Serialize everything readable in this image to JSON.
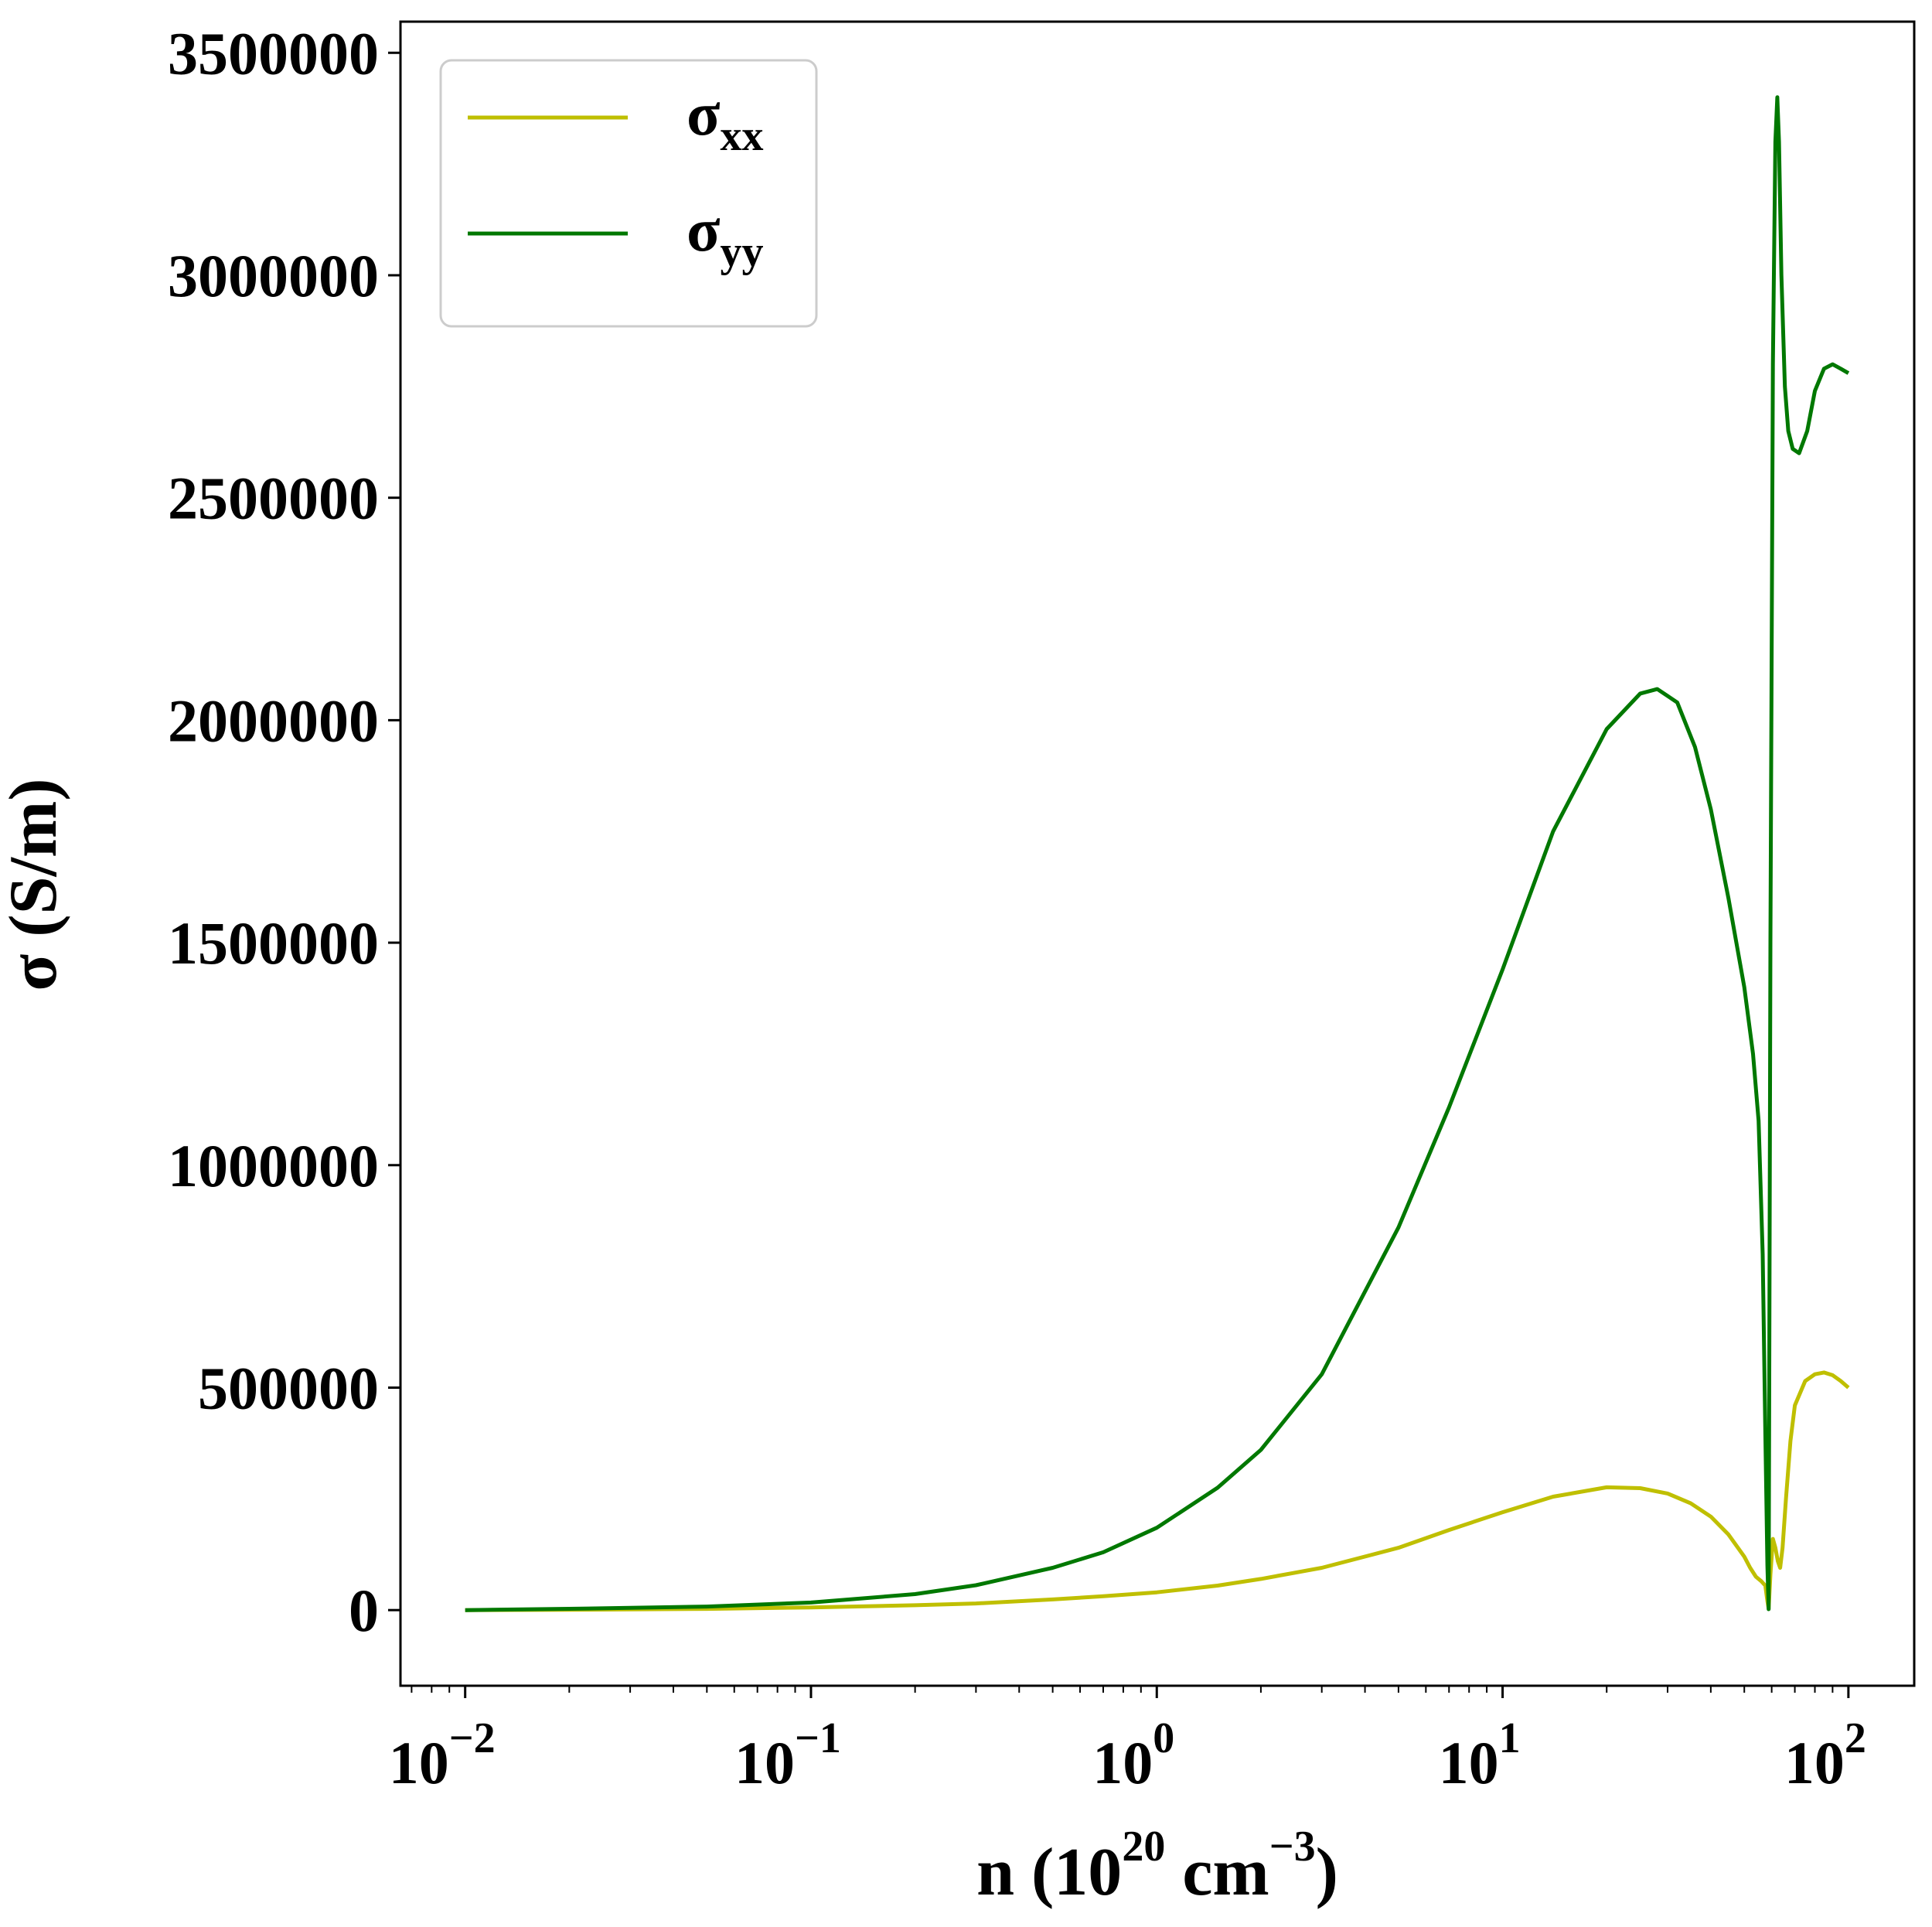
{
  "chart_data": {
    "type": "line",
    "title": "",
    "xlabel": {
      "base": "n (10",
      "exp1": "20",
      "mid": " cm",
      "exp2": "−3",
      "end": ")"
    },
    "ylabel": "σ (S/m)",
    "xscale": "log",
    "xlim": [
      0.0065,
      155
    ],
    "ylim": [
      -170000,
      3570000
    ],
    "x_ticks": [
      {
        "value": 0.01,
        "base": "10",
        "exp": "−2"
      },
      {
        "value": 0.1,
        "base": "10",
        "exp": "−1"
      },
      {
        "value": 1,
        "base": "10",
        "exp": "0"
      },
      {
        "value": 10,
        "base": "10",
        "exp": "1"
      },
      {
        "value": 100,
        "base": "10",
        "exp": "2"
      }
    ],
    "y_ticks": [
      {
        "value": 0,
        "label": "0"
      },
      {
        "value": 500000,
        "label": "500000"
      },
      {
        "value": 1000000,
        "label": "1000000"
      },
      {
        "value": 1500000,
        "label": "1500000"
      },
      {
        "value": 2000000,
        "label": "2000000"
      },
      {
        "value": 2500000,
        "label": "2500000"
      },
      {
        "value": 3000000,
        "label": "3000000"
      },
      {
        "value": 3500000,
        "label": "3500000"
      }
    ],
    "grid": false,
    "legend": {
      "placement": "upper-left"
    },
    "series": [
      {
        "name": "σxx",
        "name_main": "σ",
        "name_sub": "xx",
        "color": "#bfbf00",
        "points": [
          [
            0.01,
            0
          ],
          [
            0.02,
            800
          ],
          [
            0.03,
            1500
          ],
          [
            0.05,
            2800
          ],
          [
            0.1,
            6000
          ],
          [
            0.2,
            11000
          ],
          [
            0.3,
            15000
          ],
          [
            0.5,
            24000
          ],
          [
            0.7,
            31000
          ],
          [
            1.0,
            40000
          ],
          [
            1.5,
            55000
          ],
          [
            2.0,
            70000
          ],
          [
            3.0,
            95000
          ],
          [
            5.0,
            140000
          ],
          [
            7.0,
            180000
          ],
          [
            10.0,
            220000
          ],
          [
            14.0,
            255000
          ],
          [
            20.0,
            276000
          ],
          [
            25.0,
            274000
          ],
          [
            30.0,
            262000
          ],
          [
            35.0,
            240000
          ],
          [
            40.0,
            210000
          ],
          [
            45.0,
            170000
          ],
          [
            50.0,
            120000
          ],
          [
            52.0,
            95000
          ],
          [
            54.0,
            75000
          ],
          [
            56.0,
            65000
          ],
          [
            57.5,
            55000
          ],
          [
            58.3,
            20000
          ],
          [
            58.8,
            3000
          ],
          [
            59.5,
            80000
          ],
          [
            60.5,
            160000
          ],
          [
            61.5,
            140000
          ],
          [
            62.5,
            110000
          ],
          [
            63.5,
            95000
          ],
          [
            64.5,
            140000
          ],
          [
            66.0,
            250000
          ],
          [
            68.0,
            380000
          ],
          [
            70.0,
            460000
          ],
          [
            75.0,
            515000
          ],
          [
            80.0,
            530000
          ],
          [
            85.0,
            534000
          ],
          [
            90.0,
            528000
          ],
          [
            95.0,
            515000
          ],
          [
            100.0,
            500000
          ]
        ]
      },
      {
        "name": "σyy",
        "name_main": "σ",
        "name_sub": "yy",
        "color": "#007800",
        "points": [
          [
            0.01,
            0
          ],
          [
            0.02,
            3000
          ],
          [
            0.03,
            5000
          ],
          [
            0.05,
            8000
          ],
          [
            0.1,
            17000
          ],
          [
            0.2,
            36000
          ],
          [
            0.3,
            56000
          ],
          [
            0.5,
            95000
          ],
          [
            0.7,
            130000
          ],
          [
            1.0,
            185000
          ],
          [
            1.5,
            275000
          ],
          [
            2.0,
            360000
          ],
          [
            3.0,
            530000
          ],
          [
            5.0,
            860000
          ],
          [
            7.0,
            1130000
          ],
          [
            10.0,
            1440000
          ],
          [
            14.0,
            1750000
          ],
          [
            20.0,
            1980000
          ],
          [
            25.0,
            2060000
          ],
          [
            28.0,
            2070000
          ],
          [
            32.0,
            2040000
          ],
          [
            36.0,
            1940000
          ],
          [
            40.0,
            1800000
          ],
          [
            45.0,
            1600000
          ],
          [
            50.0,
            1400000
          ],
          [
            53.0,
            1250000
          ],
          [
            55.0,
            1100000
          ],
          [
            56.5,
            800000
          ],
          [
            57.5,
            400000
          ],
          [
            58.3,
            100000
          ],
          [
            58.8,
            2000
          ],
          [
            59.5,
            1500000
          ],
          [
            60.5,
            2800000
          ],
          [
            61.5,
            3300000
          ],
          [
            62.3,
            3400000
          ],
          [
            63.0,
            3300000
          ],
          [
            64.0,
            3000000
          ],
          [
            65.5,
            2750000
          ],
          [
            67.0,
            2650000
          ],
          [
            69.0,
            2610000
          ],
          [
            72.0,
            2600000
          ],
          [
            76.0,
            2650000
          ],
          [
            80.0,
            2740000
          ],
          [
            85.0,
            2790000
          ],
          [
            90.0,
            2800000
          ],
          [
            95.0,
            2790000
          ],
          [
            100.0,
            2780000
          ]
        ]
      }
    ]
  }
}
